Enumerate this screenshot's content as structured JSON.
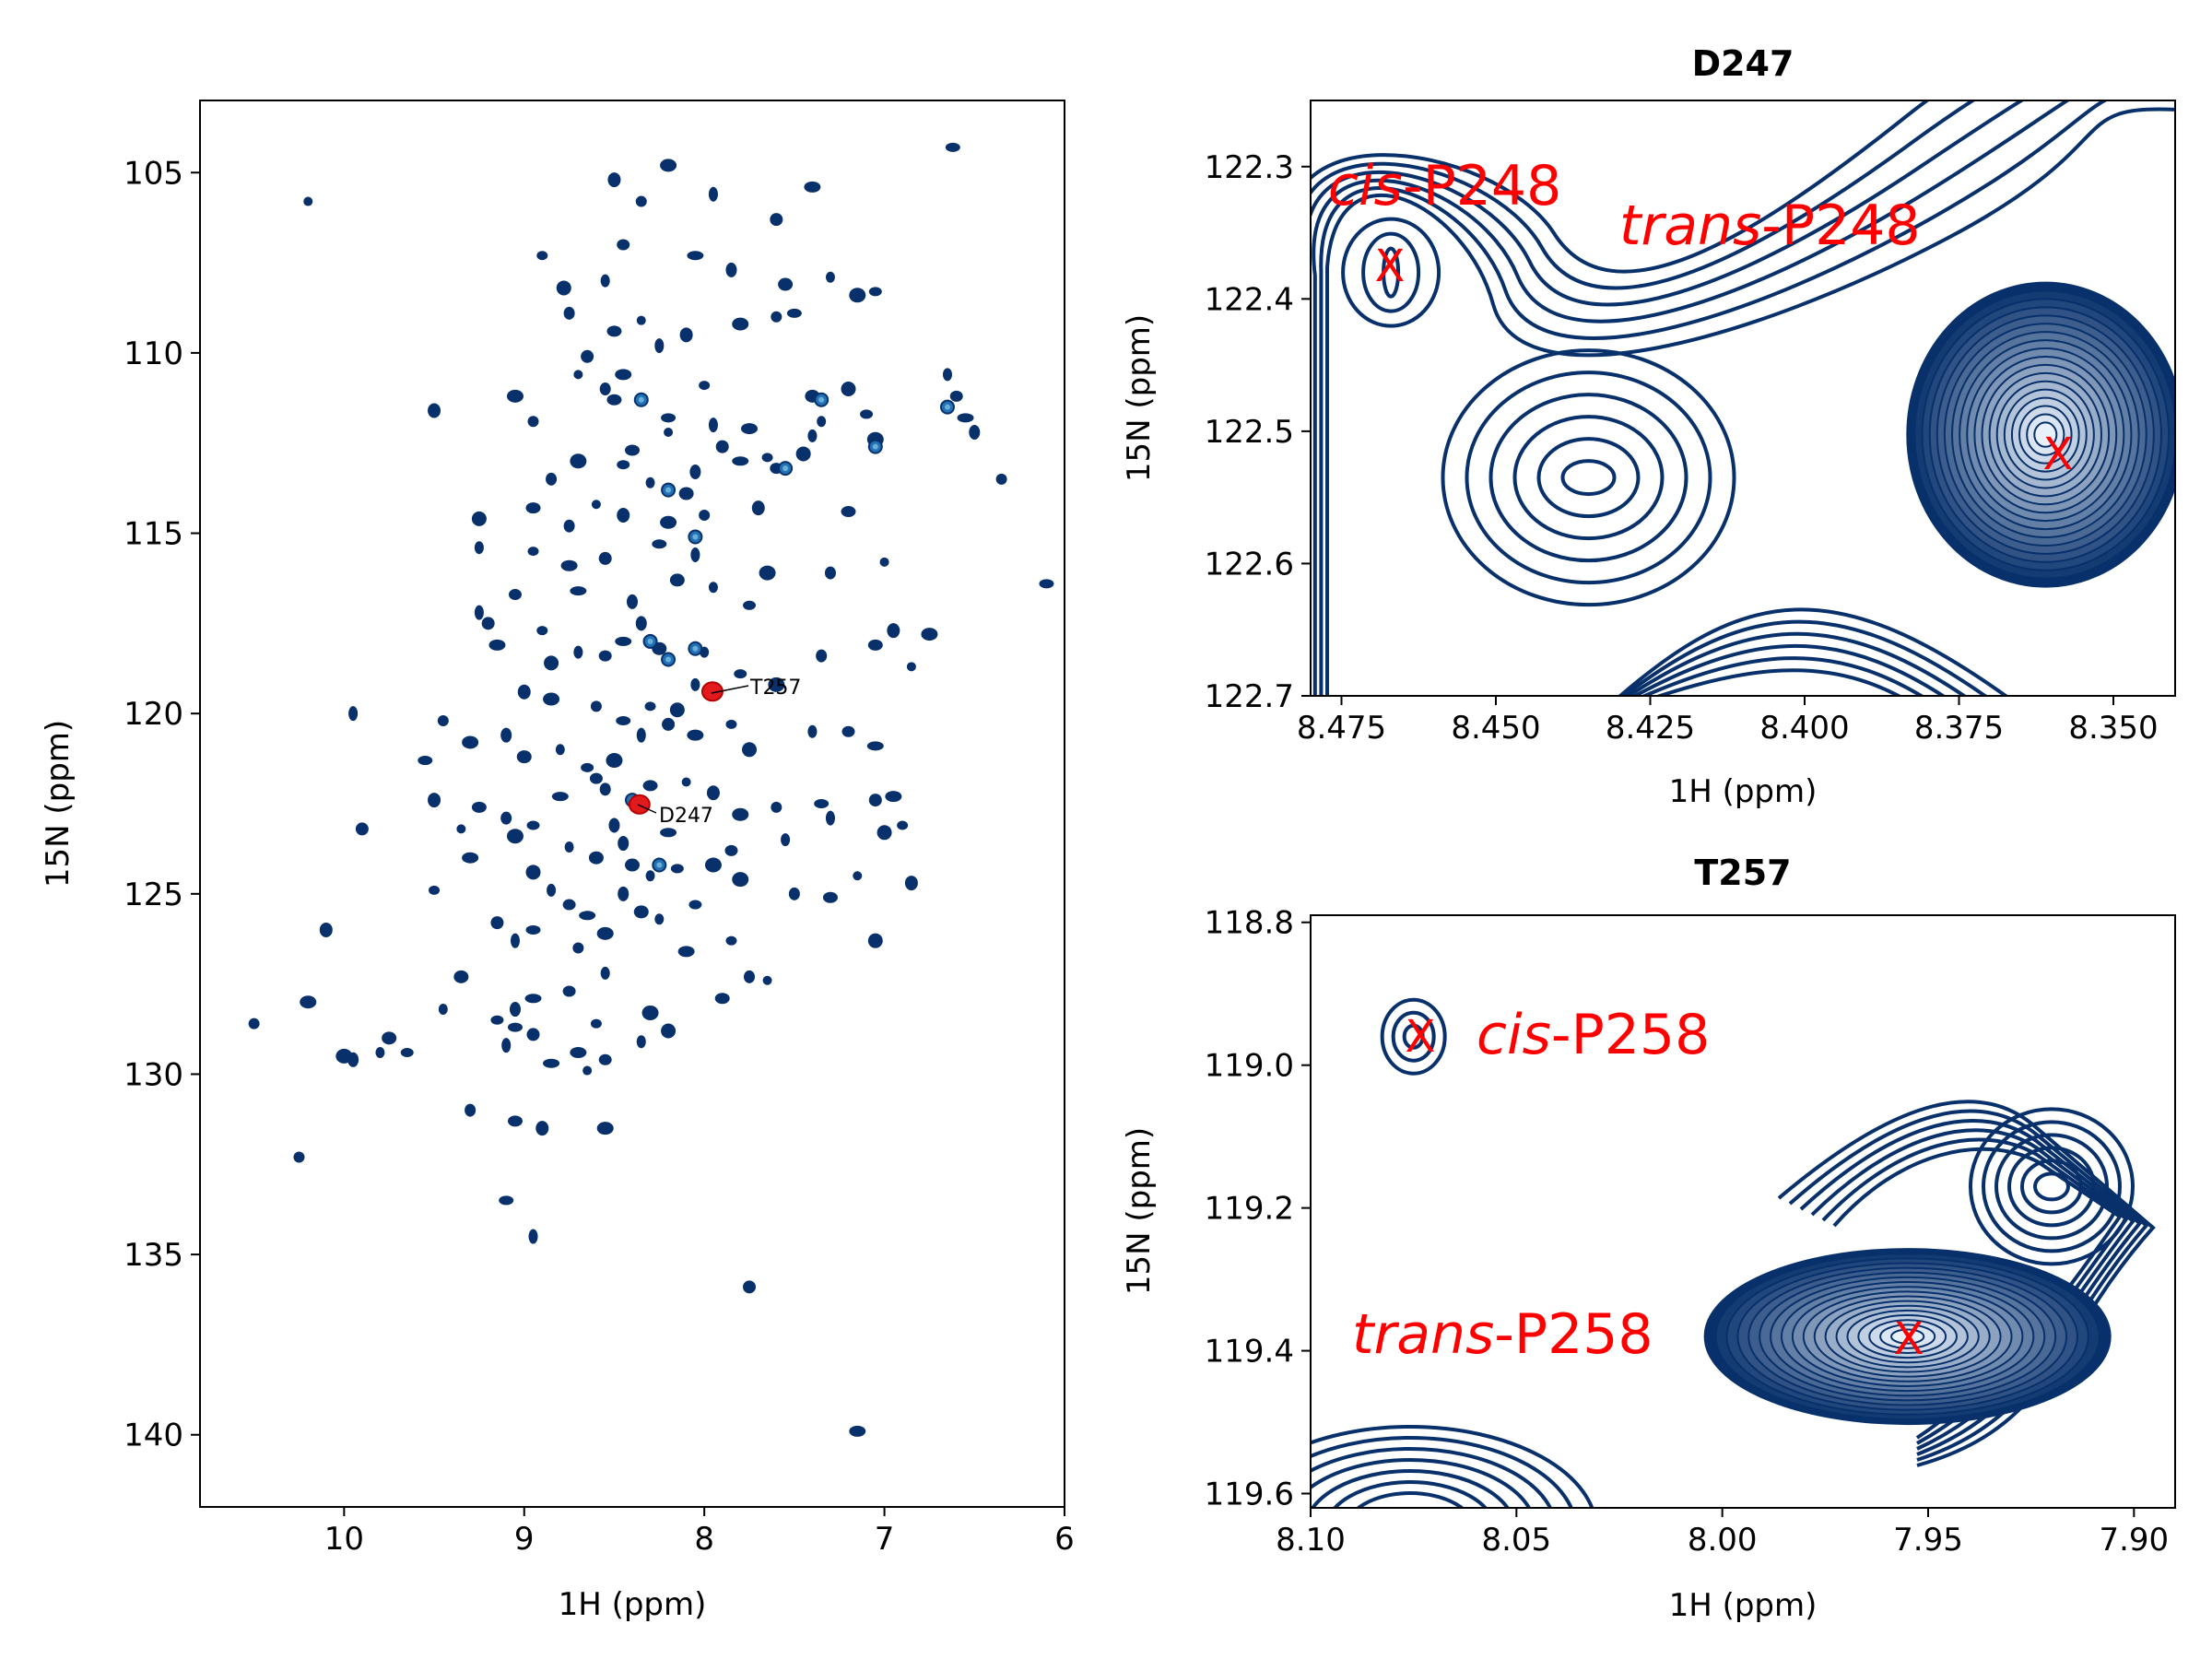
{
  "chart_data": [
    {
      "type": "scatter",
      "panel": "overview",
      "title": "",
      "xlabel": "1H (ppm)",
      "ylabel": "15N (ppm)",
      "xlim": [
        10.8,
        6.0
      ],
      "ylim": [
        142.0,
        103.0
      ],
      "x_inverted": true,
      "y_inverted": true,
      "xticks": [
        10,
        9,
        8,
        7,
        6
      ],
      "yticks": [
        105,
        110,
        115,
        120,
        125,
        130,
        135,
        140
      ],
      "xtick_labels": [
        "10",
        "9",
        "8",
        "7",
        "6"
      ],
      "ytick_labels": [
        "105",
        "110",
        "115",
        "120",
        "125",
        "130",
        "135",
        "140"
      ],
      "grid": false,
      "colors": {
        "dark": "#08306b",
        "mid": "#2171b5",
        "light": "#6baed6",
        "highlight": "#e31a1c"
      },
      "peaks": [
        [
          10.2,
          105.8
        ],
        [
          8.5,
          105.2
        ],
        [
          8.2,
          104.8
        ],
        [
          8.35,
          105.8
        ],
        [
          6.62,
          104.3
        ],
        [
          7.95,
          105.6
        ],
        [
          7.6,
          106.3
        ],
        [
          7.4,
          105.4
        ],
        [
          8.9,
          107.3
        ],
        [
          8.78,
          108.2
        ],
        [
          8.55,
          108.0
        ],
        [
          8.45,
          107.0
        ],
        [
          8.05,
          107.3
        ],
        [
          7.85,
          107.7
        ],
        [
          7.55,
          108.1
        ],
        [
          7.3,
          107.9
        ],
        [
          7.05,
          108.3
        ],
        [
          7.15,
          108.4
        ],
        [
          8.75,
          108.9
        ],
        [
          8.5,
          109.4
        ],
        [
          8.35,
          109.1
        ],
        [
          8.1,
          109.5
        ],
        [
          7.8,
          109.2
        ],
        [
          7.6,
          109.0
        ],
        [
          7.5,
          108.9
        ],
        [
          8.25,
          109.8
        ],
        [
          8.65,
          110.1
        ],
        [
          8.45,
          110.6
        ],
        [
          8.0,
          110.9
        ],
        [
          7.2,
          111.0
        ],
        [
          6.65,
          110.6
        ],
        [
          6.6,
          111.2
        ],
        [
          6.55,
          111.8
        ],
        [
          6.5,
          112.2
        ],
        [
          7.4,
          111.2
        ],
        [
          7.35,
          111.9
        ],
        [
          7.1,
          111.7
        ],
        [
          7.05,
          112.4
        ],
        [
          8.55,
          111.0
        ],
        [
          8.5,
          111.3
        ],
        [
          8.7,
          110.6
        ],
        [
          9.5,
          111.6
        ],
        [
          9.05,
          111.2
        ],
        [
          8.95,
          111.9
        ],
        [
          8.2,
          111.8
        ],
        [
          7.95,
          112.0
        ],
        [
          7.9,
          112.6
        ],
        [
          7.75,
          112.1
        ],
        [
          7.65,
          112.9
        ],
        [
          7.45,
          112.8
        ],
        [
          7.4,
          112.3
        ],
        [
          7.6,
          113.2
        ],
        [
          7.8,
          113.0
        ],
        [
          8.05,
          113.3
        ],
        [
          8.1,
          113.9
        ],
        [
          8.3,
          113.6
        ],
        [
          8.45,
          113.1
        ],
        [
          8.7,
          113.0
        ],
        [
          8.85,
          113.5
        ],
        [
          8.95,
          114.3
        ],
        [
          8.6,
          114.2
        ],
        [
          8.45,
          114.5
        ],
        [
          8.2,
          114.7
        ],
        [
          8.0,
          114.5
        ],
        [
          8.25,
          115.3
        ],
        [
          8.05,
          115.6
        ],
        [
          8.55,
          115.7
        ],
        [
          8.75,
          115.9
        ],
        [
          8.95,
          115.5
        ],
        [
          9.25,
          114.6
        ],
        [
          9.25,
          115.4
        ],
        [
          9.05,
          116.7
        ],
        [
          8.7,
          116.6
        ],
        [
          8.4,
          116.9
        ],
        [
          8.15,
          116.3
        ],
        [
          7.95,
          116.5
        ],
        [
          7.75,
          117.0
        ],
        [
          7.65,
          116.1
        ],
        [
          7.3,
          116.1
        ],
        [
          7.2,
          114.4
        ],
        [
          7.0,
          115.8
        ],
        [
          6.95,
          117.7
        ],
        [
          6.75,
          117.8
        ],
        [
          6.35,
          113.5
        ],
        [
          6.1,
          116.4
        ],
        [
          9.25,
          117.2
        ],
        [
          9.2,
          117.5
        ],
        [
          9.15,
          118.1
        ],
        [
          8.9,
          117.7
        ],
        [
          8.85,
          118.6
        ],
        [
          8.7,
          118.3
        ],
        [
          8.55,
          118.4
        ],
        [
          8.45,
          118.0
        ],
        [
          8.35,
          117.5
        ],
        [
          8.25,
          118.2
        ],
        [
          8.0,
          118.3
        ],
        [
          7.8,
          118.9
        ],
        [
          7.6,
          119.2
        ],
        [
          7.35,
          118.4
        ],
        [
          7.05,
          118.1
        ],
        [
          6.85,
          118.7
        ],
        [
          9.0,
          119.4
        ],
        [
          8.85,
          119.6
        ],
        [
          8.6,
          119.8
        ],
        [
          8.45,
          120.2
        ],
        [
          8.35,
          120.6
        ],
        [
          8.2,
          120.3
        ],
        [
          8.05,
          120.6
        ],
        [
          7.85,
          120.3
        ],
        [
          7.75,
          121.0
        ],
        [
          7.4,
          120.5
        ],
        [
          7.2,
          120.5
        ],
        [
          7.05,
          120.9
        ],
        [
          9.1,
          120.6
        ],
        [
          9.0,
          121.2
        ],
        [
          8.8,
          121.0
        ],
        [
          8.65,
          121.5
        ],
        [
          8.5,
          121.3
        ],
        [
          8.55,
          122.1
        ],
        [
          8.3,
          122.0
        ],
        [
          8.1,
          121.9
        ],
        [
          7.95,
          122.2
        ],
        [
          7.8,
          122.8
        ],
        [
          7.6,
          122.6
        ],
        [
          7.35,
          122.5
        ],
        [
          7.3,
          122.9
        ],
        [
          7.05,
          122.4
        ],
        [
          6.95,
          122.3
        ],
        [
          6.9,
          123.1
        ],
        [
          7.0,
          123.3
        ],
        [
          7.55,
          123.5
        ],
        [
          7.85,
          123.8
        ],
        [
          8.2,
          123.3
        ],
        [
          8.5,
          123.1
        ],
        [
          8.6,
          124.0
        ],
        [
          8.75,
          123.7
        ],
        [
          8.95,
          123.1
        ],
        [
          9.05,
          123.4
        ],
        [
          9.1,
          122.9
        ],
        [
          9.25,
          122.6
        ],
        [
          9.35,
          123.2
        ],
        [
          9.5,
          122.4
        ],
        [
          9.3,
          120.8
        ],
        [
          9.45,
          120.2
        ],
        [
          9.55,
          121.3
        ],
        [
          9.95,
          120.0
        ],
        [
          9.9,
          123.2
        ],
        [
          9.3,
          124.0
        ],
        [
          9.5,
          124.9
        ],
        [
          8.95,
          124.4
        ],
        [
          8.85,
          124.9
        ],
        [
          8.75,
          125.3
        ],
        [
          8.65,
          125.6
        ],
        [
          8.45,
          125.0
        ],
        [
          8.35,
          125.5
        ],
        [
          8.25,
          125.7
        ],
        [
          8.05,
          125.3
        ],
        [
          7.8,
          124.6
        ],
        [
          7.5,
          125.0
        ],
        [
          7.3,
          125.1
        ],
        [
          7.15,
          124.5
        ],
        [
          6.85,
          124.7
        ],
        [
          8.55,
          126.1
        ],
        [
          8.7,
          126.5
        ],
        [
          8.95,
          126.0
        ],
        [
          9.05,
          126.3
        ],
        [
          9.15,
          125.8
        ],
        [
          8.1,
          126.6
        ],
        [
          7.85,
          126.3
        ],
        [
          7.05,
          126.3
        ],
        [
          8.55,
          127.2
        ],
        [
          8.75,
          127.7
        ],
        [
          8.95,
          127.9
        ],
        [
          9.05,
          128.2
        ],
        [
          9.35,
          127.3
        ],
        [
          9.45,
          128.2
        ],
        [
          9.15,
          128.5
        ],
        [
          8.3,
          128.3
        ],
        [
          7.75,
          127.3
        ],
        [
          7.9,
          127.9
        ],
        [
          7.65,
          127.4
        ],
        [
          10.1,
          126.0
        ],
        [
          10.2,
          128.0
        ],
        [
          10.5,
          128.6
        ],
        [
          9.05,
          128.7
        ],
        [
          9.1,
          129.2
        ],
        [
          8.95,
          128.9
        ],
        [
          8.7,
          129.4
        ],
        [
          8.6,
          128.6
        ],
        [
          8.2,
          128.8
        ],
        [
          8.35,
          129.1
        ],
        [
          8.55,
          129.6
        ],
        [
          8.85,
          129.7
        ],
        [
          9.95,
          129.6
        ],
        [
          9.75,
          129.0
        ],
        [
          9.8,
          129.4
        ],
        [
          9.65,
          129.4
        ],
        [
          10.0,
          129.5
        ],
        [
          9.3,
          131.0
        ],
        [
          9.05,
          131.3
        ],
        [
          8.65,
          129.9
        ],
        [
          8.9,
          131.5
        ],
        [
          8.55,
          131.5
        ],
        [
          10.25,
          132.3
        ],
        [
          9.1,
          133.5
        ],
        [
          8.95,
          134.5
        ],
        [
          7.75,
          135.9
        ],
        [
          7.15,
          139.9
        ],
        [
          8.3,
          119.8
        ],
        [
          8.15,
          119.9
        ],
        [
          8.05,
          119.2
        ],
        [
          8.6,
          121.8
        ],
        [
          8.8,
          122.3
        ],
        [
          8.45,
          123.6
        ],
        [
          8.4,
          124.2
        ],
        [
          8.3,
          124.5
        ],
        [
          8.15,
          124.3
        ],
        [
          7.95,
          124.2
        ],
        [
          8.75,
          114.8
        ],
        [
          8.4,
          112.7
        ],
        [
          8.2,
          112.2
        ],
        [
          7.7,
          114.3
        ]
      ],
      "light_peaks": [
        [
          8.35,
          111.3
        ],
        [
          7.35,
          111.3
        ],
        [
          6.65,
          111.5
        ],
        [
          8.2,
          113.8
        ],
        [
          8.05,
          115.1
        ],
        [
          8.3,
          118.0
        ],
        [
          8.2,
          118.5
        ],
        [
          8.05,
          118.2
        ],
        [
          8.25,
          124.2
        ],
        [
          8.4,
          122.4
        ],
        [
          7.55,
          113.2
        ],
        [
          7.05,
          112.6
        ]
      ],
      "highlighted_peaks": [
        {
          "label": "T257",
          "x": 7.955,
          "y": 119.39
        },
        {
          "label": "D247",
          "x": 8.36,
          "y": 122.52
        }
      ]
    },
    {
      "type": "heatmap",
      "panel": "zoom-D247",
      "title": "D247",
      "xlabel": "1H (ppm)",
      "ylabel": "15N (ppm)",
      "xlim": [
        8.48,
        8.34
      ],
      "ylim": [
        122.7,
        122.25
      ],
      "x_inverted": true,
      "y_inverted": true,
      "xticks": [
        8.475,
        8.45,
        8.425,
        8.4,
        8.375,
        8.35
      ],
      "yticks": [
        122.3,
        122.4,
        122.5,
        122.6,
        122.7
      ],
      "xtick_labels": [
        "8.475",
        "8.450",
        "8.425",
        "8.400",
        "8.375",
        "8.350"
      ],
      "ytick_labels": [
        "122.3",
        "122.4",
        "122.5",
        "122.6",
        "122.7"
      ],
      "grid": false,
      "peaks": [
        {
          "label": "cis-P248",
          "x": 8.467,
          "y": 122.38
        },
        {
          "label": "trans-P248",
          "x": 8.361,
          "y": 122.52
        },
        {
          "label": "",
          "x": 8.435,
          "y": 122.535
        }
      ],
      "annotations": [
        {
          "italic": "cis",
          "rest": "-P248"
        },
        {
          "italic": "trans",
          "rest": "-P248"
        }
      ]
    },
    {
      "type": "heatmap",
      "panel": "zoom-T257",
      "title": "T257",
      "xlabel": "1H (ppm)",
      "ylabel": "15N (ppm)",
      "xlim": [
        8.1,
        7.89
      ],
      "ylim": [
        119.62,
        118.79
      ],
      "x_inverted": true,
      "y_inverted": true,
      "xticks": [
        8.1,
        8.05,
        8.0,
        7.95,
        7.9
      ],
      "yticks": [
        118.8,
        119.0,
        119.2,
        119.4,
        119.6
      ],
      "xtick_labels": [
        "8.10",
        "8.05",
        "8.00",
        "7.95",
        "7.90"
      ],
      "ytick_labels": [
        "118.8",
        "119.0",
        "119.2",
        "119.4",
        "119.6"
      ],
      "grid": false,
      "peaks": [
        {
          "label": "cis-P258",
          "x": 8.075,
          "y": 118.96
        },
        {
          "label": "trans-P258",
          "x": 7.955,
          "y": 119.38
        },
        {
          "label": "",
          "x": 7.92,
          "y": 119.17
        }
      ],
      "annotations": [
        {
          "italic": "cis",
          "rest": "-P258"
        },
        {
          "italic": "trans",
          "rest": "-P258"
        }
      ]
    }
  ],
  "markers": {
    "symbol": "X",
    "color": "#ff0000"
  }
}
